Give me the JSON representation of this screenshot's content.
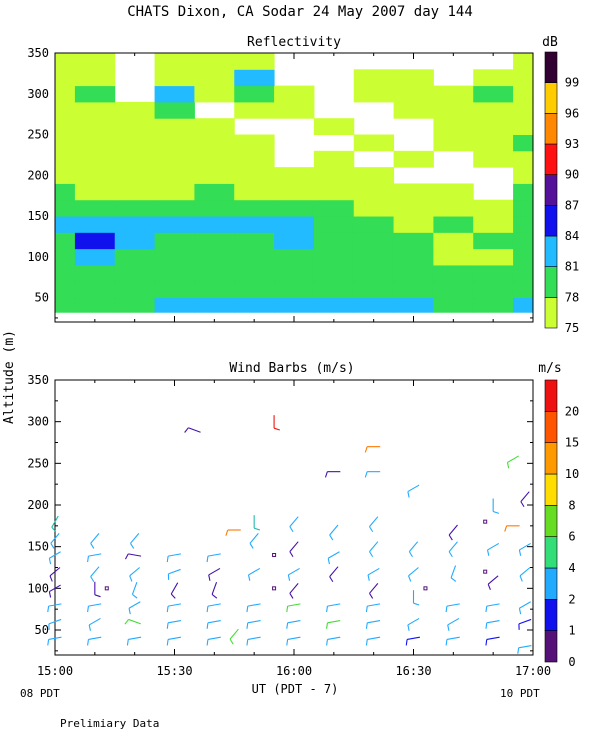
{
  "header": {
    "title": "CHATS Dixon, CA  Sodar  24 May 2007  day 144",
    "footer_left": "08 PDT",
    "footer_right": "10 PDT",
    "note": "Prelimiary Data",
    "ylabel": "Altitude (m)",
    "xlabel": "UT  (PDT - 7)"
  },
  "chart_data": [
    {
      "type": "heatmap",
      "title": "Reflectivity",
      "colorbar_label": "dB",
      "xlim_minutes_after_1500UT": [
        0,
        120
      ],
      "ylim": [
        20,
        350
      ],
      "x_ticks": [
        "15:00",
        "15:30",
        "16:00",
        "16:30",
        "17:00"
      ],
      "y_ticks": [
        50,
        100,
        150,
        200,
        250,
        300,
        350
      ],
      "color_levels": [
        75,
        78,
        81,
        84,
        87,
        90,
        93,
        96,
        99
      ],
      "level_colors": [
        "#ccff33",
        "#33dd55",
        "#22bbff",
        "#1111ee",
        "#551199",
        "#ff1111",
        "#ff8800",
        "#ffcc00",
        "#330033"
      ],
      "grid_x_minutes": [
        0,
        10,
        20,
        30,
        40,
        50,
        60,
        70,
        80,
        90,
        100,
        110,
        120
      ],
      "grid_altitudes": [
        40,
        60,
        80,
        100,
        120,
        140,
        160,
        180,
        200,
        220,
        240,
        260,
        280,
        300,
        320,
        340
      ],
      "values_dB": [
        [
          79,
          80,
          80,
          81,
          81,
          81,
          82,
          83,
          82,
          81,
          80,
          80,
          81
        ],
        [
          78,
          78,
          79,
          79,
          79,
          80,
          80,
          80,
          79,
          79,
          78,
          78,
          78
        ],
        [
          79,
          80,
          79,
          80,
          80,
          79,
          79,
          80,
          79,
          78,
          78,
          78,
          78
        ],
        [
          78,
          82,
          80,
          80,
          79,
          79,
          79,
          80,
          80,
          78,
          77,
          77,
          78
        ],
        [
          78,
          85,
          82,
          80,
          80,
          80,
          81,
          80,
          80,
          78,
          77,
          78,
          78
        ],
        [
          81,
          81,
          81,
          81,
          81,
          82,
          82,
          79,
          78,
          77,
          78,
          77,
          78
        ],
        [
          80,
          80,
          80,
          80,
          79,
          79,
          79,
          78,
          77,
          77,
          77,
          77,
          79
        ],
        [
          78,
          76,
          77,
          77,
          78,
          77,
          77,
          76,
          77,
          76,
          75,
          74,
          78
        ],
        [
          76,
          75,
          76,
          76,
          76,
          75,
          75,
          75,
          75,
          74,
          73,
          74,
          77
        ],
        [
          76,
          75,
          75,
          76,
          76,
          75,
          74,
          75,
          74,
          75,
          74,
          75,
          76
        ],
        [
          76,
          75,
          76,
          77,
          76,
          75,
          74,
          74,
          75,
          74,
          75,
          76,
          78
        ],
        [
          77,
          76,
          75,
          77,
          75,
          74,
          74,
          76,
          74,
          74,
          75,
          75,
          75
        ],
        [
          76,
          77,
          76,
          78,
          74,
          76,
          75,
          74,
          74,
          75,
          75,
          76,
          76
        ],
        [
          76,
          78,
          74,
          81,
          75,
          79,
          75,
          74,
          75,
          75,
          76,
          78,
          76
        ],
        [
          75,
          77,
          73,
          76,
          76,
          81,
          74,
          74,
          75,
          75,
          74,
          76,
          75
        ],
        [
          75,
          76,
          74,
          75,
          75,
          76,
          74,
          73,
          74,
          74,
          74,
          74,
          75
        ]
      ]
    },
    {
      "type": "scatter",
      "title": "Wind Barbs (m/s)",
      "colorbar_label": "m/s",
      "xlim_minutes_after_1500UT": [
        0,
        120
      ],
      "ylim": [
        20,
        350
      ],
      "x_ticks": [
        "15:00",
        "15:30",
        "16:00",
        "16:30",
        "17:00"
      ],
      "y_ticks": [
        50,
        100,
        150,
        200,
        250,
        300,
        350
      ],
      "color_levels": [
        0,
        1,
        2,
        4,
        6,
        8,
        10,
        15,
        20
      ],
      "level_colors": [
        "#551177",
        "#1111ee",
        "#22aaff",
        "#33dd77",
        "#66dd22",
        "#ffdd00",
        "#ff9900",
        "#ff5500",
        "#ee1111"
      ],
      "barb_color_hex": {
        "blue": "#1111ee",
        "purple": "#4411aa",
        "cyan": "#22aaff",
        "teal": "#22bbaa",
        "green": "#44dd33",
        "orange": "#ff7700",
        "red": "#ee1111"
      },
      "barbs": [
        {
          "t": 0,
          "alt": 40,
          "c": "cyan",
          "dir": 80
        },
        {
          "t": 0,
          "alt": 60,
          "c": "cyan",
          "dir": 70
        },
        {
          "t": 0,
          "alt": 80,
          "c": "cyan",
          "dir": 80
        },
        {
          "t": 0,
          "alt": 100,
          "c": "purple",
          "dir": 60
        },
        {
          "t": 0,
          "alt": 120,
          "c": "purple",
          "dir": 50
        },
        {
          "t": 0,
          "alt": 140,
          "c": "cyan",
          "dir": 60
        },
        {
          "t": 0,
          "alt": 160,
          "c": "cyan",
          "dir": 40
        },
        {
          "t": 0,
          "alt": 180,
          "c": "teal",
          "dir": 30
        },
        {
          "t": 10,
          "alt": 40,
          "c": "cyan",
          "dir": 80
        },
        {
          "t": 10,
          "alt": 60,
          "c": "cyan",
          "dir": 60
        },
        {
          "t": 10,
          "alt": 80,
          "c": "cyan",
          "dir": 80
        },
        {
          "t": 10,
          "alt": 100,
          "c": "purple",
          "dir": 0
        },
        {
          "t": 10,
          "alt": 120,
          "c": "cyan",
          "dir": 40
        },
        {
          "t": 10,
          "alt": 140,
          "c": "cyan",
          "dir": 80
        },
        {
          "t": 10,
          "alt": 160,
          "c": "cyan",
          "dir": 40
        },
        {
          "t": 20,
          "alt": 40,
          "c": "cyan",
          "dir": 80
        },
        {
          "t": 20,
          "alt": 60,
          "c": "green",
          "dir": 110
        },
        {
          "t": 20,
          "alt": 80,
          "c": "cyan",
          "dir": 60
        },
        {
          "t": 20,
          "alt": 100,
          "c": "cyan",
          "dir": 20
        },
        {
          "t": 20,
          "alt": 120,
          "c": "cyan",
          "dir": 50
        },
        {
          "t": 20,
          "alt": 140,
          "c": "purple",
          "dir": 100
        },
        {
          "t": 20,
          "alt": 160,
          "c": "cyan",
          "dir": 40
        },
        {
          "t": 30,
          "alt": 40,
          "c": "cyan",
          "dir": 80
        },
        {
          "t": 30,
          "alt": 60,
          "c": "cyan",
          "dir": 80
        },
        {
          "t": 30,
          "alt": 80,
          "c": "cyan",
          "dir": 80
        },
        {
          "t": 30,
          "alt": 100,
          "c": "purple",
          "dir": 30
        },
        {
          "t": 30,
          "alt": 120,
          "c": "cyan",
          "dir": 70
        },
        {
          "t": 30,
          "alt": 140,
          "c": "cyan",
          "dir": 80
        },
        {
          "t": 35,
          "alt": 290,
          "c": "purple",
          "dir": 110
        },
        {
          "t": 40,
          "alt": 40,
          "c": "cyan",
          "dir": 80
        },
        {
          "t": 40,
          "alt": 60,
          "c": "cyan",
          "dir": 80
        },
        {
          "t": 40,
          "alt": 80,
          "c": "cyan",
          "dir": 80
        },
        {
          "t": 40,
          "alt": 100,
          "c": "purple",
          "dir": 20
        },
        {
          "t": 40,
          "alt": 120,
          "c": "purple",
          "dir": 60
        },
        {
          "t": 40,
          "alt": 140,
          "c": "cyan",
          "dir": 80
        },
        {
          "t": 45,
          "alt": 170,
          "c": "orange",
          "dir": 90
        },
        {
          "t": 45,
          "alt": 45,
          "c": "green",
          "dir": 40
        },
        {
          "t": 50,
          "alt": 40,
          "c": "cyan",
          "dir": 80
        },
        {
          "t": 50,
          "alt": 60,
          "c": "cyan",
          "dir": 80
        },
        {
          "t": 50,
          "alt": 80,
          "c": "cyan",
          "dir": 80
        },
        {
          "t": 50,
          "alt": 120,
          "c": "cyan",
          "dir": 60
        },
        {
          "t": 50,
          "alt": 160,
          "c": "cyan",
          "dir": 40
        },
        {
          "t": 50,
          "alt": 180,
          "c": "teal",
          "dir": 0
        },
        {
          "t": 55,
          "alt": 300,
          "c": "red",
          "dir": 0
        },
        {
          "t": 60,
          "alt": 40,
          "c": "cyan",
          "dir": 80
        },
        {
          "t": 60,
          "alt": 60,
          "c": "cyan",
          "dir": 80
        },
        {
          "t": 60,
          "alt": 80,
          "c": "green",
          "dir": 80
        },
        {
          "t": 60,
          "alt": 100,
          "c": "purple",
          "dir": 40
        },
        {
          "t": 60,
          "alt": 120,
          "c": "cyan",
          "dir": 60
        },
        {
          "t": 60,
          "alt": 150,
          "c": "purple",
          "dir": 40
        },
        {
          "t": 60,
          "alt": 180,
          "c": "cyan",
          "dir": 40
        },
        {
          "t": 70,
          "alt": 40,
          "c": "cyan",
          "dir": 80
        },
        {
          "t": 70,
          "alt": 60,
          "c": "green",
          "dir": 80
        },
        {
          "t": 70,
          "alt": 80,
          "c": "cyan",
          "dir": 80
        },
        {
          "t": 70,
          "alt": 120,
          "c": "purple",
          "dir": 40
        },
        {
          "t": 70,
          "alt": 140,
          "c": "cyan",
          "dir": 60
        },
        {
          "t": 70,
          "alt": 170,
          "c": "cyan",
          "dir": 40
        },
        {
          "t": 70,
          "alt": 240,
          "c": "purple",
          "dir": 90
        },
        {
          "t": 80,
          "alt": 40,
          "c": "cyan",
          "dir": 80
        },
        {
          "t": 80,
          "alt": 60,
          "c": "cyan",
          "dir": 80
        },
        {
          "t": 80,
          "alt": 80,
          "c": "cyan",
          "dir": 80
        },
        {
          "t": 80,
          "alt": 100,
          "c": "purple",
          "dir": 40
        },
        {
          "t": 80,
          "alt": 120,
          "c": "cyan",
          "dir": 60
        },
        {
          "t": 80,
          "alt": 150,
          "c": "cyan",
          "dir": 40
        },
        {
          "t": 80,
          "alt": 180,
          "c": "cyan",
          "dir": 40
        },
        {
          "t": 80,
          "alt": 240,
          "c": "cyan",
          "dir": 90
        },
        {
          "t": 80,
          "alt": 270,
          "c": "orange",
          "dir": 90
        },
        {
          "t": 90,
          "alt": 40,
          "c": "blue",
          "dir": 80
        },
        {
          "t": 90,
          "alt": 60,
          "c": "cyan",
          "dir": 60
        },
        {
          "t": 90,
          "alt": 90,
          "c": "cyan",
          "dir": 0
        },
        {
          "t": 90,
          "alt": 120,
          "c": "cyan",
          "dir": 50
        },
        {
          "t": 90,
          "alt": 150,
          "c": "cyan",
          "dir": 40
        },
        {
          "t": 90,
          "alt": 220,
          "c": "cyan",
          "dir": 60
        },
        {
          "t": 100,
          "alt": 40,
          "c": "cyan",
          "dir": 80
        },
        {
          "t": 100,
          "alt": 60,
          "c": "cyan",
          "dir": 60
        },
        {
          "t": 100,
          "alt": 80,
          "c": "cyan",
          "dir": 80
        },
        {
          "t": 100,
          "alt": 120,
          "c": "cyan",
          "dir": 20
        },
        {
          "t": 100,
          "alt": 150,
          "c": "cyan",
          "dir": 40
        },
        {
          "t": 100,
          "alt": 170,
          "c": "purple",
          "dir": 40
        },
        {
          "t": 110,
          "alt": 40,
          "c": "blue",
          "dir": 80
        },
        {
          "t": 110,
          "alt": 60,
          "c": "cyan",
          "dir": 80
        },
        {
          "t": 110,
          "alt": 80,
          "c": "cyan",
          "dir": 80
        },
        {
          "t": 110,
          "alt": 110,
          "c": "purple",
          "dir": 50
        },
        {
          "t": 110,
          "alt": 150,
          "c": "cyan",
          "dir": 60
        },
        {
          "t": 110,
          "alt": 200,
          "c": "cyan",
          "dir": 0
        },
        {
          "t": 115,
          "alt": 175,
          "c": "orange",
          "dir": 90
        },
        {
          "t": 115,
          "alt": 255,
          "c": "green",
          "dir": 60
        },
        {
          "t": 118,
          "alt": 30,
          "c": "cyan",
          "dir": 80
        },
        {
          "t": 118,
          "alt": 60,
          "c": "blue",
          "dir": 70
        },
        {
          "t": 118,
          "alt": 80,
          "c": "cyan",
          "dir": 60
        },
        {
          "t": 118,
          "alt": 120,
          "c": "cyan",
          "dir": 50
        },
        {
          "t": 118,
          "alt": 150,
          "c": "cyan",
          "dir": 60
        },
        {
          "t": 118,
          "alt": 210,
          "c": "purple",
          "dir": 40
        }
      ],
      "markers": [
        {
          "t": 13,
          "alt": 100
        },
        {
          "t": 55,
          "alt": 100
        },
        {
          "t": 55,
          "alt": 140
        },
        {
          "t": 93,
          "alt": 100
        },
        {
          "t": 108,
          "alt": 120
        },
        {
          "t": 108,
          "alt": 180
        }
      ]
    }
  ]
}
